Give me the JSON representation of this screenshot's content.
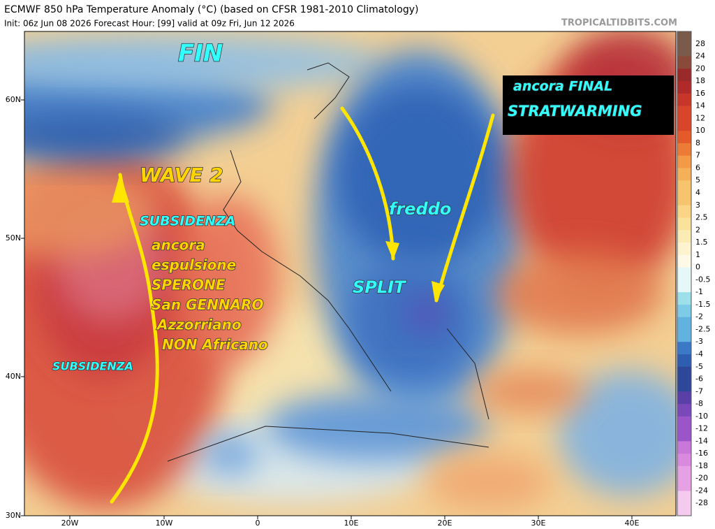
{
  "header": {
    "title": "ECMWF 850 hPa Temperature Anomaly (°C) (based on CFSR 1981-2010 Climatology)",
    "subtitle": "Init: 06z Jun 08 2026   Forecast Hour: [99]   valid at 09z Fri, Jun 12 2026",
    "brand": "TROPICALTIDBITS.COM"
  },
  "map": {
    "lat_labels": [
      "60N",
      "50N",
      "40N",
      "30N"
    ],
    "lon_labels": [
      "20W",
      "10W",
      "0",
      "10E",
      "20E",
      "30E",
      "40E"
    ]
  },
  "colorbar": {
    "labels": [
      28,
      24,
      20,
      18,
      16,
      14,
      12,
      10,
      8,
      7,
      6,
      5,
      4,
      3,
      2.5,
      2,
      1.5,
      1,
      0,
      -0.5,
      -1,
      -1.5,
      -2,
      -2.5,
      -3,
      -4,
      -5,
      -6,
      -7,
      -8,
      -10,
      -12,
      -14,
      -16,
      -18,
      -20,
      -24,
      -28
    ]
  },
  "annotations": {
    "fin": "FIN",
    "wave": "WAVE 2",
    "subsidenza_north": "SUBSIDENZA",
    "subsidenza_south": "SUBSIDENZA",
    "espulsione": [
      "ancora",
      "espulsione",
      "SPERONE",
      "San GENNARO",
      "Azzorriano",
      "NON Africano"
    ],
    "freddo": "freddo",
    "split": "SPLIT",
    "stratwarming": [
      "ancora FINAL",
      "STRATWARMING"
    ]
  }
}
